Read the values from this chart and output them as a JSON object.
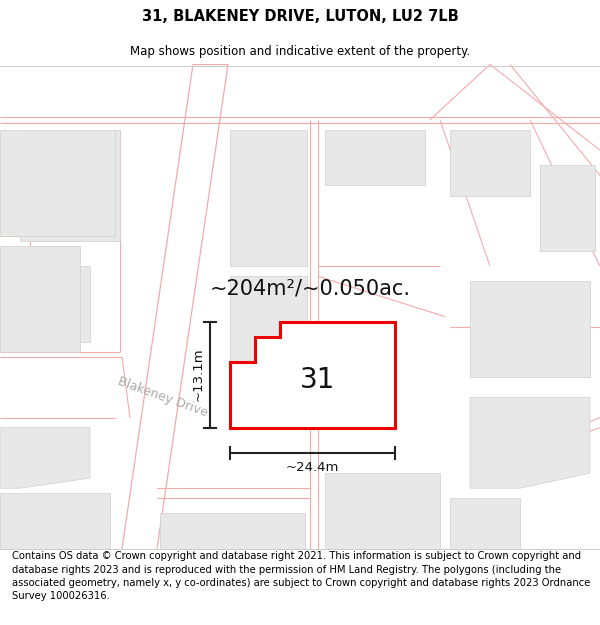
{
  "title_line1": "31, BLAKENEY DRIVE, LUTON, LU2 7LB",
  "title_line2": "Map shows position and indicative extent of the property.",
  "footer_text": "Contains OS data © Crown copyright and database right 2021. This information is subject to Crown copyright and database rights 2023 and is reproduced with the permission of HM Land Registry. The polygons (including the associated geometry, namely x, y co-ordinates) are subject to Crown copyright and database rights 2023 Ordnance Survey 100026316.",
  "area_label": "~204m²/~0.050ac.",
  "width_label": "~24.4m",
  "height_label": "~13.1m",
  "number_label": "31",
  "bg_color": "#f8f8f8",
  "building_color": "#e8e8e8",
  "building_edge": "#d0d0d0",
  "plot_fill": "#ffffff",
  "plot_outline": "#ee0000",
  "road_line_color": "#f5aaaa",
  "road_bg": "#f0f0f0",
  "dimension_color": "#222222",
  "title_fontsize": 10.5,
  "subtitle_fontsize": 8.5,
  "footer_fontsize": 7.2,
  "number_fontsize": 20,
  "area_fontsize": 15,
  "dim_label_fontsize": 9.5,
  "road_label_fontsize": 9,
  "road_label_color": "#aaaaaa"
}
